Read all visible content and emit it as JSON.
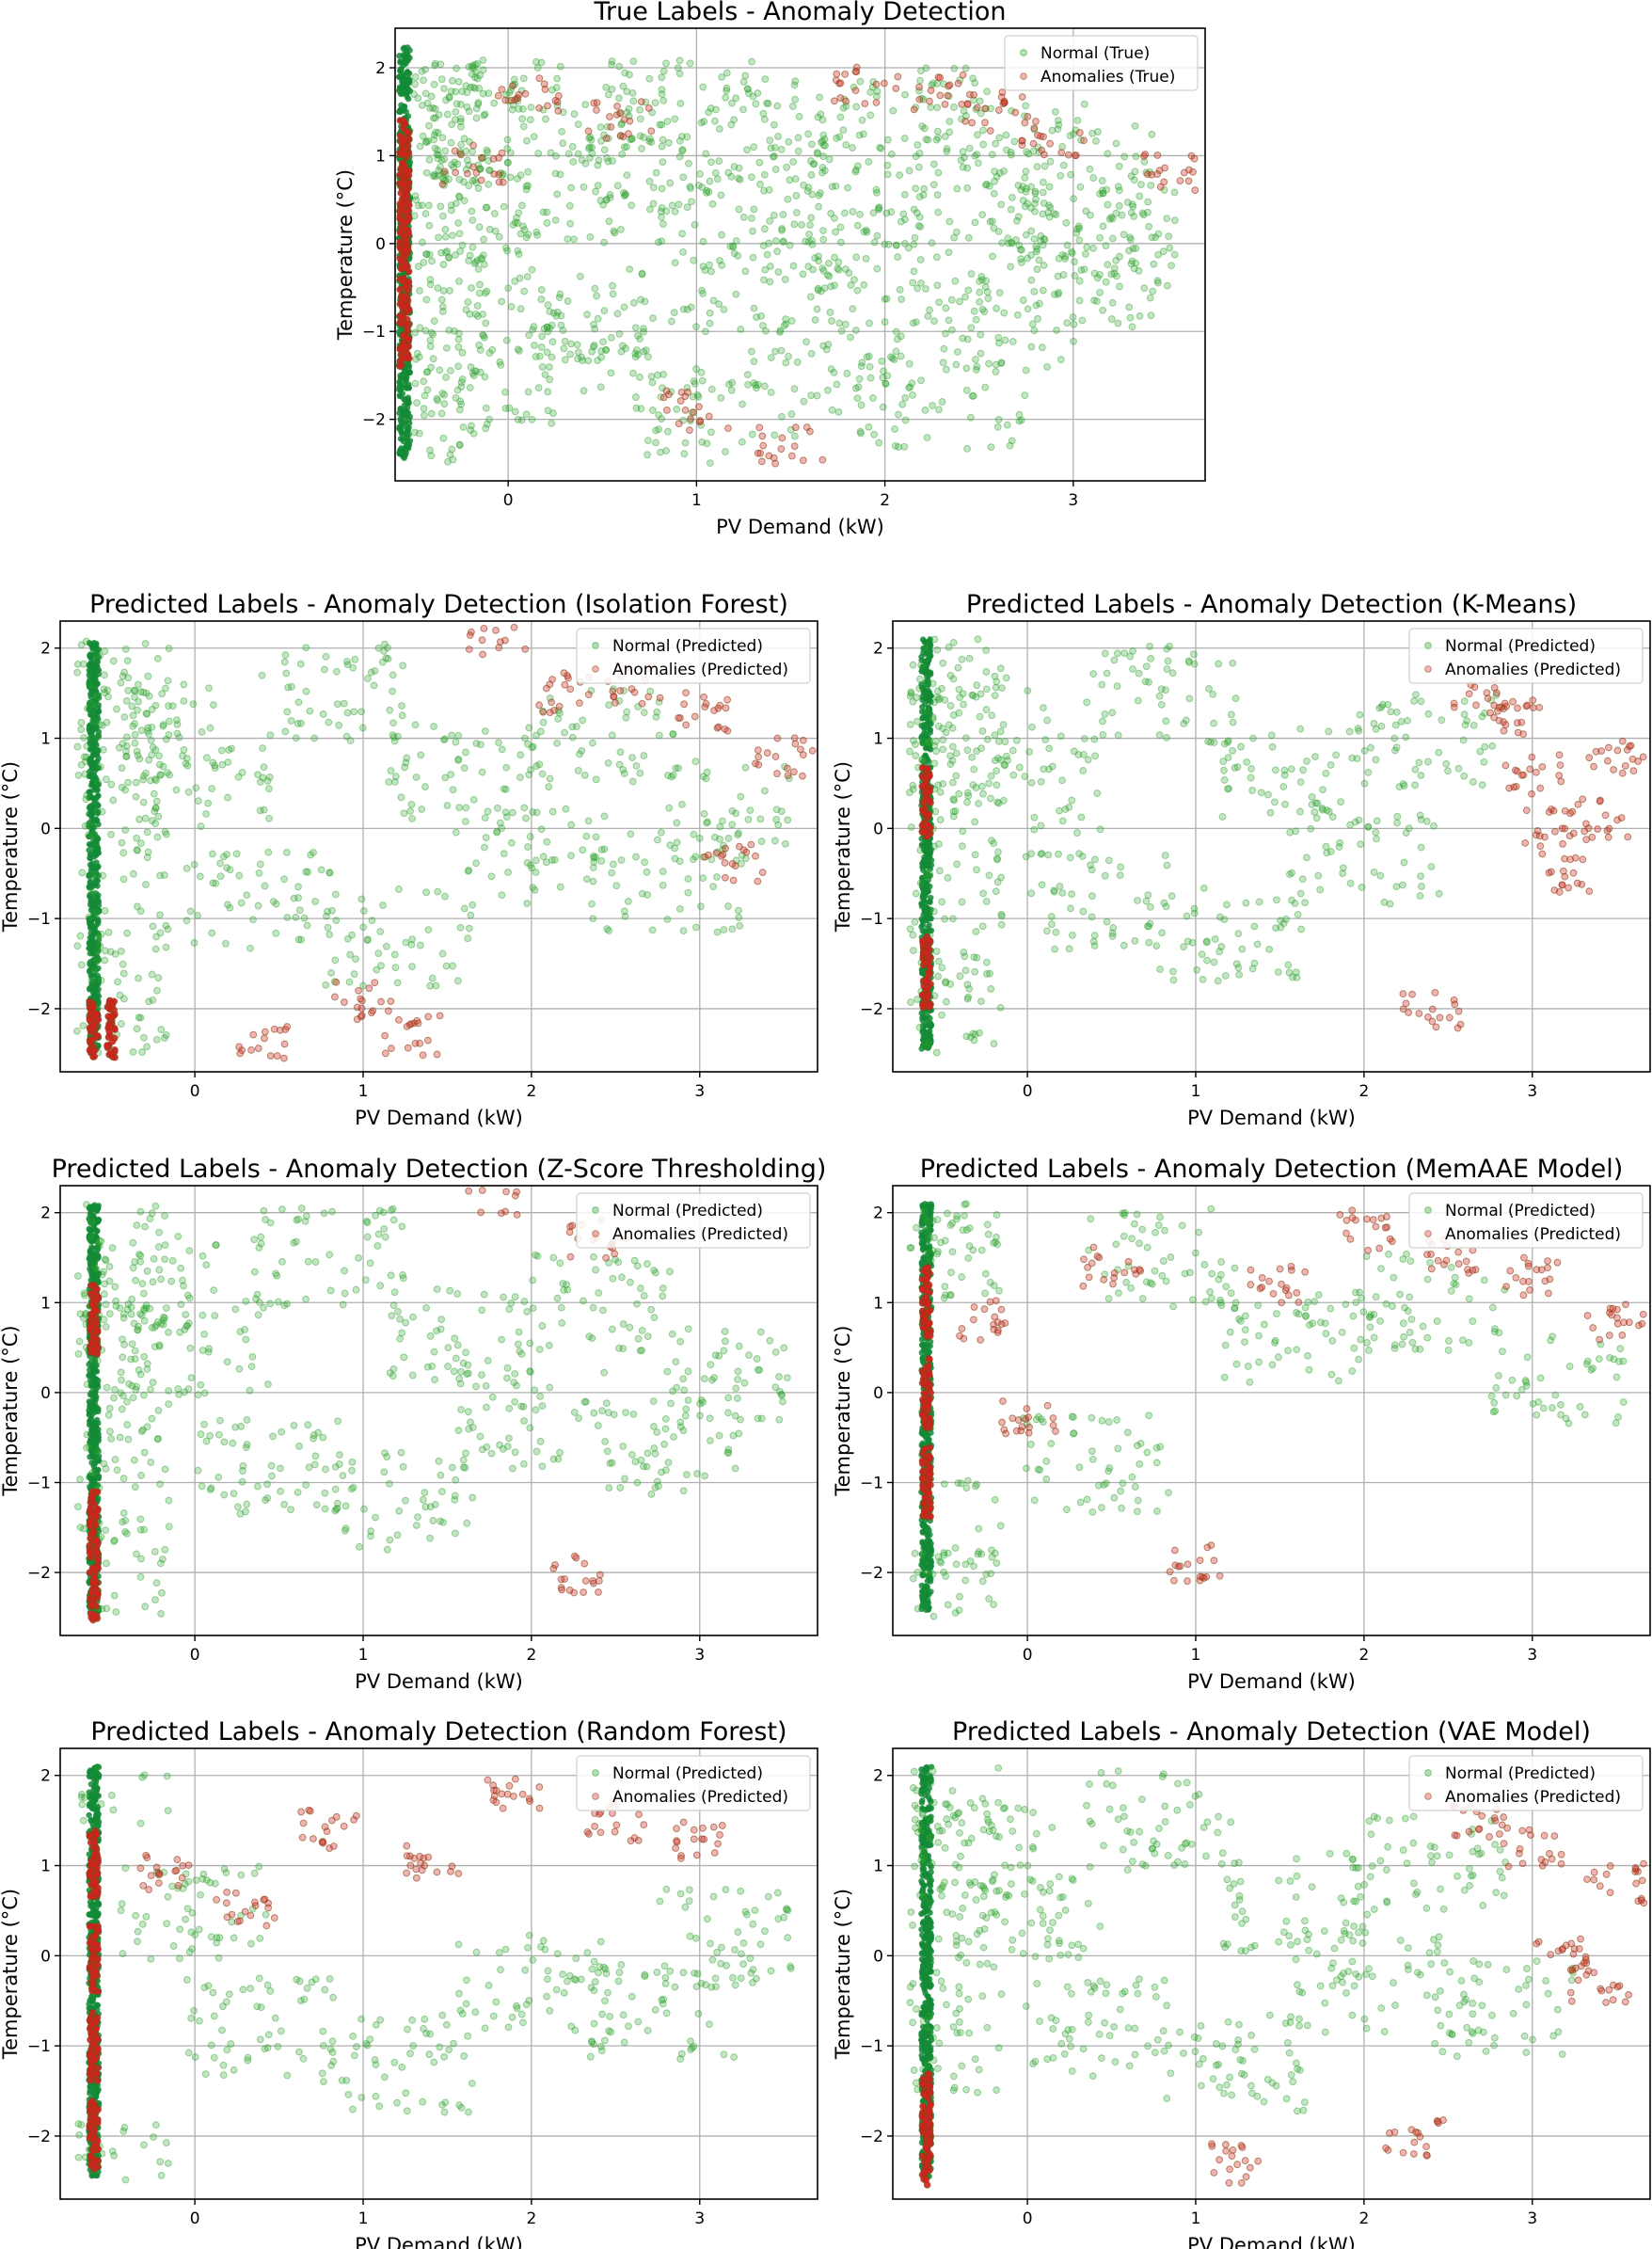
{
  "figure": {
    "colors": {
      "normal": "#2ca02c",
      "anomaly": "#d62728",
      "normal_dense": "#138a36",
      "anomaly_dense": "#d42020"
    }
  },
  "chart_data": [
    {
      "type": "scatter",
      "title": "True Labels - Anomaly Detection",
      "xlabel": "PV Demand (kW)",
      "ylabel": "Temperature (°C)",
      "xlim": [
        -0.6,
        3.7
      ],
      "ylim": [
        -2.7,
        2.45
      ],
      "xticks": [
        0,
        1,
        2,
        3
      ],
      "yticks": [
        -2,
        -1,
        0,
        1,
        2
      ],
      "grid": true,
      "legend_position": "top-right",
      "series": [
        {
          "name": "Normal (True)",
          "color": "#2ca02c",
          "rows": [
            [
              -0.55,
              2.0
            ],
            [
              -0.55,
              1.7
            ],
            [
              -0.55,
              1.2
            ],
            [
              -0.55,
              0.6
            ],
            [
              -0.55,
              0.0
            ],
            [
              -0.55,
              -0.6
            ],
            [
              -0.55,
              -1.2
            ],
            [
              -0.55,
              -1.8
            ],
            [
              -0.55,
              -2.3
            ],
            [
              -0.4,
              1.5
            ],
            [
              -0.3,
              0.3
            ],
            [
              -0.2,
              -1.5
            ],
            [
              0.0,
              1.2
            ],
            [
              0.2,
              0.5
            ],
            [
              0.3,
              -0.8
            ],
            [
              0.5,
              1.6
            ],
            [
              0.6,
              -1.2
            ],
            [
              0.8,
              0.9
            ],
            [
              1.0,
              1.9
            ],
            [
              1.1,
              -2.0
            ],
            [
              1.2,
              0.2
            ],
            [
              1.4,
              -0.5
            ],
            [
              1.5,
              1.3
            ],
            [
              1.7,
              -1.4
            ],
            [
              1.8,
              0.7
            ],
            [
              2.0,
              -0.2
            ],
            [
              2.1,
              1.5
            ],
            [
              2.3,
              -1.8
            ],
            [
              2.4,
              0.4
            ],
            [
              2.6,
              -0.9
            ],
            [
              2.7,
              1.1
            ],
            [
              2.9,
              -0.3
            ],
            [
              3.0,
              0.8
            ],
            [
              3.2,
              0.1
            ],
            [
              3.4,
              -0.4
            ]
          ]
        },
        {
          "name": "Anomalies (True)",
          "color": "#d62728",
          "rows": [
            [
              -0.55,
              1.0
            ],
            [
              -0.55,
              0.3
            ],
            [
              -0.55,
              -0.4
            ],
            [
              -0.55,
              -1.0
            ],
            [
              -0.2,
              0.9
            ],
            [
              0.1,
              1.7
            ],
            [
              0.6,
              1.4
            ],
            [
              1.0,
              -1.9
            ],
            [
              1.5,
              -2.3
            ],
            [
              1.9,
              1.8
            ],
            [
              2.3,
              1.7
            ],
            [
              2.6,
              1.5
            ],
            [
              2.9,
              1.2
            ],
            [
              3.5,
              0.8
            ]
          ]
        }
      ]
    },
    {
      "type": "scatter",
      "title": "Predicted Labels - Anomaly Detection (Isolation Forest)",
      "xlabel": "PV Demand (kW)",
      "ylabel": "Temperature (°C)",
      "xlim": [
        -0.8,
        3.7
      ],
      "ylim": [
        -2.7,
        2.3
      ],
      "xticks": [
        0,
        1,
        2,
        3
      ],
      "yticks": [
        -2,
        -1,
        0,
        1,
        2
      ],
      "grid": true,
      "legend_position": "top-right",
      "series": [
        {
          "name": "Normal (Predicted)",
          "color": "#2ca02c",
          "rows": [
            [
              -0.6,
              2.0
            ],
            [
              -0.6,
              1.0
            ],
            [
              -0.6,
              0.0
            ],
            [
              -0.6,
              -1.0
            ],
            [
              -0.6,
              -2.0
            ],
            [
              -0.3,
              1.2
            ],
            [
              0.0,
              0.5
            ],
            [
              0.4,
              -0.8
            ],
            [
              0.8,
              1.5
            ],
            [
              1.2,
              -1.2
            ],
            [
              1.6,
              0.6
            ],
            [
              2.0,
              -0.3
            ],
            [
              2.4,
              1.0
            ],
            [
              2.8,
              -0.6
            ],
            [
              3.2,
              0.2
            ]
          ]
        },
        {
          "name": "Anomalies (Predicted)",
          "color": "#d62728",
          "rows": [
            [
              -0.6,
              -2.3
            ],
            [
              -0.5,
              -2.3
            ],
            [
              0.4,
              -2.4
            ],
            [
              1.0,
              -1.9
            ],
            [
              1.3,
              -2.3
            ],
            [
              1.8,
              2.1
            ],
            [
              2.2,
              1.5
            ],
            [
              2.6,
              1.6
            ],
            [
              3.0,
              1.3
            ],
            [
              3.2,
              -0.4
            ],
            [
              3.5,
              0.8
            ]
          ]
        }
      ]
    },
    {
      "type": "scatter",
      "title": "Predicted Labels - Anomaly Detection (K-Means)",
      "xlabel": "PV Demand (kW)",
      "ylabel": "Temperature (°C)",
      "xlim": [
        -0.8,
        3.7
      ],
      "ylim": [
        -2.7,
        2.3
      ],
      "xticks": [
        0,
        1,
        2,
        3
      ],
      "yticks": [
        -2,
        -1,
        0,
        1,
        2
      ],
      "grid": true,
      "legend_position": "top-right",
      "series": [
        {
          "name": "Normal (Predicted)",
          "color": "#2ca02c",
          "rows": [
            [
              -0.6,
              2.0
            ],
            [
              -0.6,
              1.0
            ],
            [
              -0.6,
              0.0
            ],
            [
              -0.6,
              -1.0
            ],
            [
              -0.6,
              -2.0
            ],
            [
              -0.3,
              1.2
            ],
            [
              0.0,
              0.5
            ],
            [
              0.4,
              -0.8
            ],
            [
              0.8,
              1.5
            ],
            [
              1.2,
              -1.2
            ],
            [
              1.6,
              0.6
            ],
            [
              2.0,
              -0.3
            ],
            [
              2.4,
              1.0
            ]
          ]
        },
        {
          "name": "Anomalies (Predicted)",
          "color": "#d62728",
          "rows": [
            [
              -0.6,
              0.3
            ],
            [
              -0.6,
              -1.6
            ],
            [
              2.7,
              1.5
            ],
            [
              2.9,
              1.2
            ],
            [
              3.0,
              0.6
            ],
            [
              3.1,
              0.0
            ],
            [
              3.2,
              -0.5
            ],
            [
              3.4,
              0.1
            ],
            [
              3.5,
              0.8
            ],
            [
              2.4,
              -2.0
            ]
          ]
        }
      ]
    },
    {
      "type": "scatter",
      "title": "Predicted Labels - Anomaly Detection (Z-Score Thresholding)",
      "xlabel": "PV Demand (kW)",
      "ylabel": "Temperature (°C)",
      "xlim": [
        -0.8,
        3.7
      ],
      "ylim": [
        -2.7,
        2.3
      ],
      "xticks": [
        0,
        1,
        2,
        3
      ],
      "yticks": [
        -2,
        -1,
        0,
        1,
        2
      ],
      "grid": true,
      "legend_position": "top-right",
      "series": [
        {
          "name": "Normal (Predicted)",
          "color": "#2ca02c",
          "rows": [
            [
              -0.6,
              2.0
            ],
            [
              -0.6,
              1.0
            ],
            [
              -0.6,
              0.0
            ],
            [
              -0.6,
              -1.0
            ],
            [
              -0.6,
              -2.0
            ],
            [
              -0.3,
              1.2
            ],
            [
              0.0,
              0.5
            ],
            [
              0.4,
              -0.8
            ],
            [
              0.8,
              1.5
            ],
            [
              1.2,
              -1.2
            ],
            [
              1.6,
              0.6
            ],
            [
              2.0,
              -0.3
            ],
            [
              2.4,
              1.0
            ],
            [
              2.8,
              -0.6
            ],
            [
              3.2,
              0.2
            ]
          ]
        },
        {
          "name": "Anomalies (Predicted)",
          "color": "#d62728",
          "rows": [
            [
              -0.6,
              -2.3
            ],
            [
              -0.6,
              -1.5
            ],
            [
              -0.6,
              0.8
            ],
            [
              1.8,
              2.2
            ],
            [
              2.4,
              1.7
            ],
            [
              2.3,
              -2.0
            ]
          ]
        }
      ]
    },
    {
      "type": "scatter",
      "title": "Predicted Labels - Anomaly Detection (MemAAE Model)",
      "xlabel": "PV Demand (kW)",
      "ylabel": "Temperature (°C)",
      "xlim": [
        -0.8,
        3.7
      ],
      "ylim": [
        -2.7,
        2.3
      ],
      "xticks": [
        0,
        1,
        2,
        3
      ],
      "yticks": [
        -2,
        -1,
        0,
        1,
        2
      ],
      "grid": true,
      "legend_position": "top-right",
      "series": [
        {
          "name": "Normal (Predicted)",
          "color": "#2ca02c",
          "rows": [
            [
              -0.6,
              2.0
            ],
            [
              -0.6,
              1.5
            ],
            [
              -0.6,
              -1.5
            ],
            [
              -0.6,
              -2.3
            ],
            [
              0.4,
              -0.8
            ],
            [
              0.8,
              1.5
            ],
            [
              1.6,
              0.6
            ],
            [
              2.4,
              1.0
            ],
            [
              3.2,
              0.2
            ]
          ]
        },
        {
          "name": "Anomalies (Predicted)",
          "color": "#d62728",
          "rows": [
            [
              -0.6,
              1.0
            ],
            [
              -0.6,
              0.0
            ],
            [
              -0.6,
              -1.0
            ],
            [
              -0.3,
              0.8
            ],
            [
              0.0,
              -0.3
            ],
            [
              0.5,
              1.4
            ],
            [
              1.0,
              -1.9
            ],
            [
              1.5,
              1.2
            ],
            [
              2.0,
              1.8
            ],
            [
              2.5,
              1.5
            ],
            [
              3.0,
              1.3
            ],
            [
              3.5,
              0.8
            ]
          ]
        }
      ]
    },
    {
      "type": "scatter",
      "title": "Predicted Labels - Anomaly Detection (Random Forest)",
      "xlabel": "PV Demand (kW)",
      "ylabel": "Temperature (°C)",
      "xlim": [
        -0.8,
        3.7
      ],
      "ylim": [
        -2.7,
        2.3
      ],
      "xticks": [
        0,
        1,
        2,
        3
      ],
      "yticks": [
        -2,
        -1,
        0,
        1,
        2
      ],
      "grid": true,
      "legend_position": "top-right",
      "series": [
        {
          "name": "Normal (Predicted)",
          "color": "#2ca02c",
          "rows": [
            [
              -0.6,
              2.0
            ],
            [
              -0.6,
              -2.4
            ],
            [
              0.0,
              0.5
            ],
            [
              0.4,
              -0.8
            ],
            [
              1.2,
              -1.2
            ],
            [
              2.0,
              -0.3
            ],
            [
              2.8,
              -0.6
            ],
            [
              3.2,
              0.2
            ]
          ]
        },
        {
          "name": "Anomalies (Predicted)",
          "color": "#d62728",
          "rows": [
            [
              -0.6,
              1.0
            ],
            [
              -0.6,
              0.0
            ],
            [
              -0.6,
              -1.0
            ],
            [
              -0.6,
              -2.0
            ],
            [
              -0.2,
              0.9
            ],
            [
              0.3,
              0.5
            ],
            [
              0.8,
              1.4
            ],
            [
              1.4,
              1.0
            ],
            [
              1.9,
              1.8
            ],
            [
              2.5,
              1.5
            ],
            [
              3.0,
              1.3
            ]
          ]
        }
      ]
    },
    {
      "type": "scatter",
      "title": "Predicted Labels - Anomaly Detection (VAE Model)",
      "xlabel": "PV Demand (kW)",
      "ylabel": "Temperature (°C)",
      "xlim": [
        -0.8,
        3.7
      ],
      "ylim": [
        -2.7,
        2.3
      ],
      "xticks": [
        0,
        1,
        2,
        3
      ],
      "yticks": [
        -2,
        -1,
        0,
        1,
        2
      ],
      "grid": true,
      "legend_position": "top-right",
      "series": [
        {
          "name": "Normal (Predicted)",
          "color": "#2ca02c",
          "rows": [
            [
              -0.6,
              2.0
            ],
            [
              -0.6,
              1.0
            ],
            [
              -0.6,
              0.0
            ],
            [
              -0.6,
              -1.0
            ],
            [
              -0.3,
              1.2
            ],
            [
              0.0,
              0.5
            ],
            [
              0.4,
              -0.8
            ],
            [
              0.8,
              1.5
            ],
            [
              1.2,
              -1.2
            ],
            [
              1.6,
              0.6
            ],
            [
              2.0,
              -0.3
            ],
            [
              2.4,
              1.0
            ],
            [
              2.8,
              -0.6
            ]
          ]
        },
        {
          "name": "Anomalies (Predicted)",
          "color": "#d62728",
          "rows": [
            [
              -0.6,
              -1.7
            ],
            [
              -0.6,
              -2.2
            ],
            [
              1.2,
              -2.3
            ],
            [
              2.3,
              -2.0
            ],
            [
              2.7,
              1.5
            ],
            [
              3.0,
              1.2
            ],
            [
              3.2,
              0.0
            ],
            [
              3.4,
              -0.3
            ],
            [
              3.5,
              0.8
            ]
          ]
        }
      ]
    }
  ]
}
